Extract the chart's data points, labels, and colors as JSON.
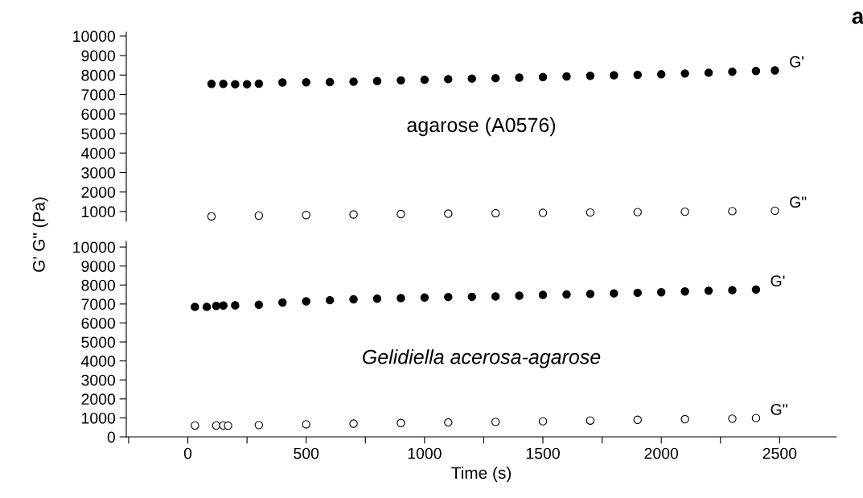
{
  "chart_data": [
    {
      "type": "scatter",
      "marker": "circle",
      "ylabel": "G' G\" (Pa)",
      "annotations": [
        "agarose (A0576)",
        "a"
      ],
      "xticks": [
        0,
        500,
        1000,
        1500,
        2000,
        2500
      ],
      "ylim": [
        500,
        10200
      ],
      "yticks": [
        1000,
        2000,
        3000,
        4000,
        5000,
        6000,
        7000,
        8000,
        9000,
        10000
      ],
      "tick_labels": "y",
      "grid": false,
      "series": [
        {
          "name": "G'",
          "color": "#000000",
          "x": [
            100,
            150,
            200,
            250,
            300,
            400,
            500,
            600,
            700,
            800,
            900,
            1000,
            1100,
            1200,
            1300,
            1400,
            1500,
            1600,
            1700,
            1800,
            1900,
            2000,
            2100,
            2200,
            2300,
            2400,
            2480
          ],
          "values": [
            7550,
            7550,
            7530,
            7530,
            7560,
            7620,
            7630,
            7640,
            7660,
            7690,
            7730,
            7760,
            7790,
            7820,
            7840,
            7870,
            7900,
            7930,
            7960,
            7990,
            8010,
            8040,
            8080,
            8120,
            8170,
            8210,
            8240
          ]
        },
        {
          "name": "G\"",
          "color": "#ffffff",
          "x": [
            100,
            300,
            500,
            700,
            900,
            1100,
            1300,
            1500,
            1700,
            1900,
            2100,
            2300,
            2480
          ],
          "values": [
            750,
            790,
            820,
            850,
            870,
            890,
            910,
            930,
            950,
            970,
            990,
            1020,
            1040
          ]
        }
      ]
    },
    {
      "type": "scatter",
      "marker": "circle",
      "xlabel": "Time (s)",
      "annotations": [
        "Gelidiella acerosa-agarose"
      ],
      "xlim": [
        -260,
        2740
      ],
      "ylim": [
        0,
        10300
      ],
      "xticks": [
        {
          "value": -250,
          "label": null
        },
        0,
        {
          "value": 250,
          "label": null
        },
        500,
        {
          "value": 750,
          "label": null
        },
        1000,
        {
          "value": 1250,
          "label": null
        },
        1500,
        {
          "value": 1750,
          "label": null
        },
        2000,
        {
          "value": 2250,
          "label": null
        },
        2500
      ],
      "yticks": [
        0,
        1000,
        2000,
        3000,
        4000,
        5000,
        6000,
        7000,
        8000,
        9000,
        10000
      ],
      "grid": false,
      "series": [
        {
          "name": "G'",
          "color": "#000000",
          "x": [
            30,
            80,
            120,
            150,
            200,
            300,
            400,
            500,
            600,
            700,
            800,
            900,
            1000,
            1100,
            1200,
            1300,
            1400,
            1500,
            1600,
            1700,
            1800,
            1900,
            2000,
            2100,
            2200,
            2300,
            2400
          ],
          "values": [
            6850,
            6850,
            6900,
            6920,
            6930,
            6960,
            7080,
            7140,
            7200,
            7250,
            7280,
            7310,
            7340,
            7370,
            7380,
            7400,
            7440,
            7480,
            7500,
            7530,
            7560,
            7590,
            7620,
            7660,
            7700,
            7730,
            7760
          ]
        },
        {
          "name": "G\"",
          "color": "#ffffff",
          "x": [
            30,
            120,
            150,
            170,
            300,
            500,
            700,
            900,
            1100,
            1300,
            1500,
            1700,
            1900,
            2100,
            2300,
            2400
          ],
          "values": [
            600,
            600,
            600,
            590,
            620,
            660,
            700,
            730,
            760,
            790,
            820,
            860,
            900,
            930,
            960,
            990
          ]
        }
      ]
    }
  ]
}
